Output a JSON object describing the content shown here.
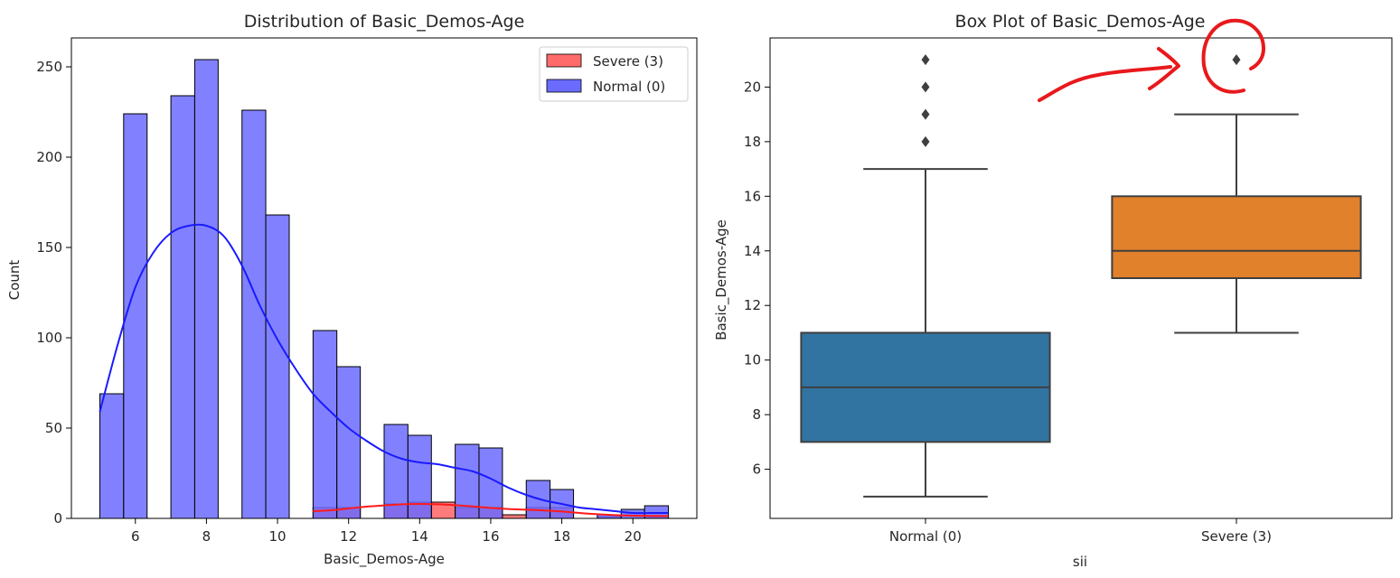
{
  "chart_data": [
    {
      "type": "histogram",
      "title": "Distribution of Basic_Demos-Age",
      "xlabel": "Basic_Demos-Age",
      "ylabel": "Count",
      "xlim": [
        4.2,
        21.8
      ],
      "ylim": [
        0,
        266
      ],
      "xticks": [
        6,
        8,
        10,
        12,
        14,
        16,
        18,
        20
      ],
      "yticks": [
        0,
        50,
        100,
        150,
        200,
        250
      ],
      "legend": {
        "position": "top-right",
        "entries": [
          "Severe (3)",
          "Normal (0)"
        ]
      },
      "series": [
        {
          "name": "Normal (0)",
          "color": "#6b6bff",
          "kde_color": "#1a1aff",
          "bins": [
            {
              "x0": 5.0,
              "x1": 5.67,
              "count": 69
            },
            {
              "x0": 5.67,
              "x1": 6.33,
              "count": 224
            },
            {
              "x0": 7.0,
              "x1": 7.67,
              "count": 234
            },
            {
              "x0": 7.67,
              "x1": 8.33,
              "count": 254
            },
            {
              "x0": 9.0,
              "x1": 9.67,
              "count": 226
            },
            {
              "x0": 9.67,
              "x1": 10.33,
              "count": 168
            },
            {
              "x0": 11.0,
              "x1": 11.67,
              "count": 104
            },
            {
              "x0": 11.67,
              "x1": 12.33,
              "count": 84
            },
            {
              "x0": 13.0,
              "x1": 13.67,
              "count": 52
            },
            {
              "x0": 13.67,
              "x1": 14.33,
              "count": 46
            },
            {
              "x0": 15.0,
              "x1": 15.67,
              "count": 41
            },
            {
              "x0": 15.67,
              "x1": 16.33,
              "count": 39
            },
            {
              "x0": 17.0,
              "x1": 17.67,
              "count": 21
            },
            {
              "x0": 17.67,
              "x1": 18.33,
              "count": 16
            },
            {
              "x0": 19.0,
              "x1": 19.67,
              "count": 2
            },
            {
              "x0": 19.67,
              "x1": 20.33,
              "count": 5
            },
            {
              "x0": 20.33,
              "x1": 21.0,
              "count": 7
            }
          ],
          "kde": [
            [
              5.0,
              59
            ],
            [
              5.5,
              96
            ],
            [
              6.0,
              128
            ],
            [
              6.5,
              147
            ],
            [
              7.0,
              158
            ],
            [
              7.5,
              162
            ],
            [
              8.0,
              162
            ],
            [
              8.5,
              156
            ],
            [
              9.0,
              140
            ],
            [
              9.5,
              118
            ],
            [
              10.0,
              99
            ],
            [
              10.5,
              83
            ],
            [
              11.0,
              69
            ],
            [
              11.5,
              59
            ],
            [
              12.0,
              50
            ],
            [
              12.5,
              43
            ],
            [
              13.0,
              37
            ],
            [
              13.5,
              33
            ],
            [
              14.0,
              31
            ],
            [
              14.5,
              30
            ],
            [
              15.0,
              28
            ],
            [
              15.5,
              26
            ],
            [
              16.0,
              22
            ],
            [
              16.5,
              17
            ],
            [
              17.0,
              13
            ],
            [
              17.5,
              10
            ],
            [
              18.0,
              8
            ],
            [
              18.5,
              6
            ],
            [
              19.0,
              5
            ],
            [
              19.5,
              4
            ],
            [
              20.0,
              3
            ],
            [
              20.5,
              3
            ],
            [
              21.0,
              3
            ]
          ]
        },
        {
          "name": "Severe (3)",
          "color": "#ff6b6b",
          "kde_color": "#ff1a1a",
          "bins": [
            {
              "x0": 11.0,
              "x1": 11.67,
              "count": 6
            },
            {
              "x0": 11.67,
              "x1": 12.33,
              "count": 6
            },
            {
              "x0": 13.0,
              "x1": 13.67,
              "count": 8
            },
            {
              "x0": 13.67,
              "x1": 14.33,
              "count": 9
            },
            {
              "x0": 14.33,
              "x1": 15.0,
              "count": 9
            },
            {
              "x0": 15.0,
              "x1": 15.67,
              "count": 6
            },
            {
              "x0": 15.67,
              "x1": 16.33,
              "count": 6
            },
            {
              "x0": 16.33,
              "x1": 17.0,
              "count": 2
            },
            {
              "x0": 17.0,
              "x1": 17.67,
              "count": 6
            },
            {
              "x0": 17.67,
              "x1": 18.33,
              "count": 6
            },
            {
              "x0": 19.0,
              "x1": 19.67,
              "count": 1
            },
            {
              "x0": 20.33,
              "x1": 21.0,
              "count": 1
            }
          ],
          "kde": [
            [
              11.0,
              4
            ],
            [
              11.5,
              4.5
            ],
            [
              12.0,
              5.5
            ],
            [
              12.5,
              6.5
            ],
            [
              13.0,
              7.2
            ],
            [
              13.5,
              7.8
            ],
            [
              14.0,
              8
            ],
            [
              14.5,
              7.8
            ],
            [
              15.0,
              7.3
            ],
            [
              15.5,
              6.6
            ],
            [
              16.0,
              5.8
            ],
            [
              16.5,
              5.2
            ],
            [
              17.0,
              4.8
            ],
            [
              17.5,
              4.4
            ],
            [
              18.0,
              3.8
            ],
            [
              18.5,
              3
            ],
            [
              19.0,
              2.3
            ],
            [
              19.5,
              1.8
            ],
            [
              20.0,
              1.5
            ],
            [
              20.5,
              1.4
            ],
            [
              21.0,
              1.3
            ]
          ]
        }
      ]
    },
    {
      "type": "box",
      "title": "Box Plot of Basic_Demos-Age",
      "xlabel": "sii",
      "ylabel": "Basic_Demos-Age",
      "categories": [
        "Normal (0)",
        "Severe (3)"
      ],
      "ylim": [
        4.2,
        21.8
      ],
      "yticks": [
        6,
        8,
        10,
        12,
        14,
        16,
        18,
        20
      ],
      "boxes": [
        {
          "category": "Normal (0)",
          "color": "#3274a1",
          "whisker_low": 5,
          "q1": 7,
          "median": 9,
          "q3": 11,
          "whisker_high": 17,
          "outliers": [
            18,
            19,
            20,
            21
          ]
        },
        {
          "category": "Severe (3)",
          "color": "#e1812c",
          "whisker_low": 11,
          "q1": 13,
          "median": 14,
          "q3": 16,
          "whisker_high": 19,
          "outliers": [
            21
          ]
        }
      ],
      "annotation": {
        "type": "hand-drawn-arrow-and-circle",
        "color": "#e8191c",
        "target": "Severe (3) outlier"
      }
    }
  ]
}
